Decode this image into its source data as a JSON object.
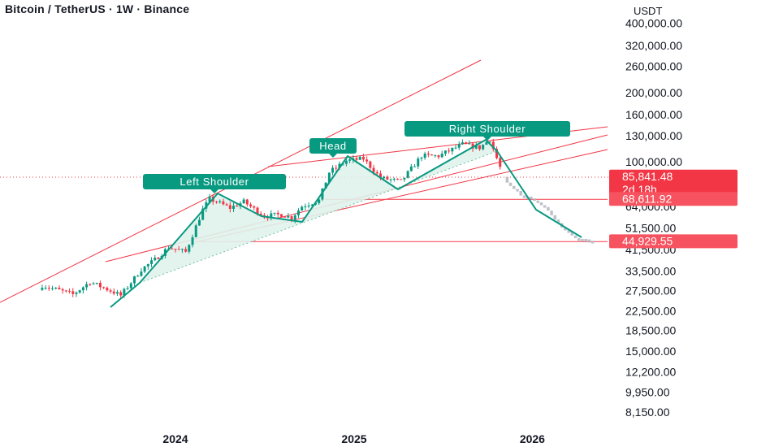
{
  "header": {
    "title": "Bitcoin / TetherUS · 1W · Binance",
    "unit": "USDT"
  },
  "chart_data": {
    "type": "candlestick",
    "y_scale": "log",
    "ylim": [
      7400,
      480000
    ],
    "y_ticks": [
      "400,000.00",
      "320,000.00",
      "260,000.00",
      "200,000.00",
      "160,000.00",
      "130,000.00",
      "100,000.00",
      "64,000.00",
      "51,500.00",
      "41,500.00",
      "33,500.00",
      "27,500.00",
      "22,500.00",
      "18,500.00",
      "15,000.00",
      "12,200.00",
      "9,950.00",
      "8,150.00"
    ],
    "x_ticks": [
      {
        "label": "2024",
        "date": "2024-01-01"
      },
      {
        "label": "2025",
        "date": "2025-01-01"
      },
      {
        "label": "2026",
        "date": "2026-01-01"
      }
    ],
    "price_badges": [
      {
        "value": "85,841.48",
        "sub": "2d 18h",
        "color": "#f23645"
      },
      {
        "value": "68,611.92",
        "color": "#f7525f"
      },
      {
        "value": "44,929.55",
        "color": "#f7525f"
      }
    ],
    "annotations": [
      "Left Shoulder",
      "Head",
      "Right Shoulder"
    ],
    "colors": {
      "up": "#089981",
      "down": "#f23645",
      "projection": "#b2b5be",
      "neckline": "#f7525f",
      "pattern_fill": "#e0f2ec"
    },
    "series": [
      {
        "name": "actual",
        "dates": [
          "2023-04-03",
          "2023-06-05",
          "2023-07-10",
          "2023-08-21",
          "2023-09-11",
          "2023-10-23",
          "2023-11-20",
          "2023-12-18",
          "2024-01-22",
          "2024-02-26",
          "2024-03-11",
          "2024-04-22",
          "2024-05-20",
          "2024-07-01",
          "2024-08-05",
          "2024-08-26",
          "2024-09-16",
          "2024-10-21",
          "2024-11-11",
          "2024-12-16",
          "2025-01-20",
          "2025-02-24",
          "2025-03-10",
          "2025-04-07",
          "2025-05-19",
          "2025-06-23",
          "2025-08-11",
          "2025-09-15",
          "2025-10-06",
          "2025-11-03"
        ],
        "close": [
          29000,
          26500,
          30000,
          27500,
          26200,
          34000,
          37500,
          42500,
          40500,
          62000,
          69000,
          63000,
          67000,
          58000,
          59000,
          57000,
          64000,
          68000,
          90000,
          101000,
          103000,
          85000,
          84000,
          82000,
          106000,
          106000,
          119000,
          115000,
          125000,
          86000
        ]
      },
      {
        "name": "projection",
        "dates": [
          "2025-11-10",
          "2025-12-08",
          "2026-01-05",
          "2026-02-02",
          "2026-03-02",
          "2026-04-06",
          "2026-05-04"
        ],
        "close": [
          80000,
          72000,
          68000,
          62000,
          52000,
          46000,
          44900
        ]
      }
    ]
  }
}
